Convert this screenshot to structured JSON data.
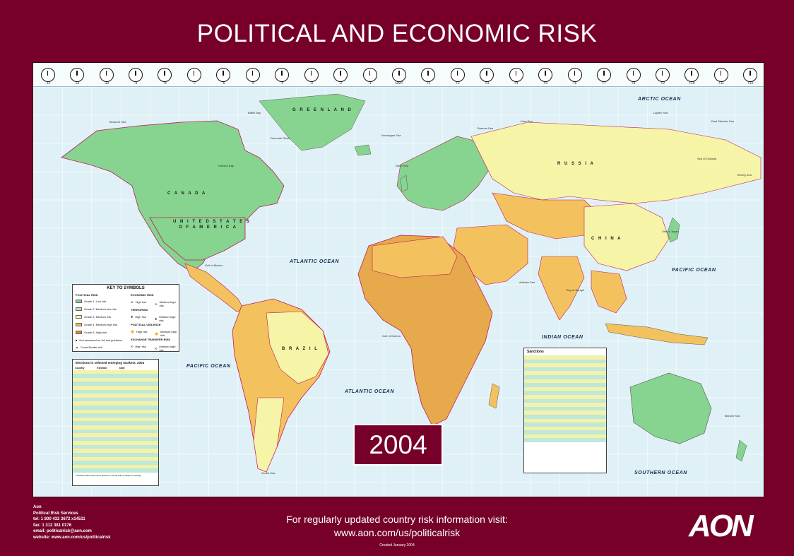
{
  "title": "POLITICAL AND ECONOMIC RISK",
  "year": "2004",
  "timezones": [
    "-12",
    "-11",
    "-10",
    "-9",
    "-8",
    "-7",
    "-6",
    "-5",
    "-4",
    "-3",
    "-2",
    "-1",
    "GMT",
    "+1",
    "+2",
    "+3",
    "+4",
    "+5",
    "+6",
    "+7",
    "+8",
    "+9",
    "+10",
    "+11",
    "+12"
  ],
  "oceans": {
    "arctic": "ARCTIC OCEAN",
    "atlantic_north": "ATLANTIC OCEAN",
    "atlantic_south": "ATLANTIC OCEAN",
    "pacific_east": "PACIFIC OCEAN",
    "pacific_west": "PACIFIC OCEAN",
    "indian": "INDIAN OCEAN",
    "southern": "SOUTHERN OCEAN"
  },
  "countries": {
    "greenland": "G R E E N L A N D",
    "canada": "C A N A D A",
    "usa_line1": "U N I T E D   S T A T E S",
    "usa_line2": "O F   A M E R I C A",
    "russia": "R U S S I A",
    "brazil": "B R A Z I L",
    "china": "C H I N A"
  },
  "seas": {
    "baffin": "Baffin Bay",
    "hudson": "Hudson Bay",
    "beaufort": "Beaufort Sea",
    "gulf_mexico": "Gulf of Mexico",
    "norwegian": "Norwegian Sea",
    "barents": "Barents Sea",
    "kara": "Kara Sea",
    "laptev": "Laptev Sea",
    "east_siberian": "East Siberian Sea",
    "bering": "Bering Sea",
    "okhotsk": "Sea of Okhotsk",
    "japan": "Sea of Japan",
    "arabian": "Arabian Sea",
    "bengal": "Bay of Bengal",
    "guinea": "Gulf of Guinea",
    "scotia": "Scotia Sea",
    "tasman": "Tasman Sea",
    "north_sea": "North Sea",
    "denmark_strait": "Denmark Strait"
  },
  "legend": {
    "title": "KEY TO SYMBOLS",
    "political_risk": "POLITICAL RISK",
    "economic_risk": "ECONOMIC RISK",
    "terrorism": "TERRORISM",
    "political_violence": "POLITICAL VIOLENCE",
    "exchange_transfer": "EXCHANGE TRANSFER RISK",
    "levels": [
      "Grade 1: Low risk",
      "Grade 2: Medium-low risk",
      "Grade 3: Medium risk",
      "Grade 4: Medium-high risk",
      "Grade 5: High risk"
    ],
    "other": [
      "Not assessed for full risk guidance",
      "Cross Border risk"
    ],
    "high_risk": "High risk",
    "medium_high_risk": "Medium-high risk"
  },
  "elections": {
    "title": "Elections in selected emerging markets, 2004",
    "headers": [
      "Country",
      "Election",
      "Date"
    ],
    "footnote": "* Indicates date determined. Elections should still be subject to change."
  },
  "sanctions": {
    "title": "Sanctions"
  },
  "colors": {
    "background": "#76002a",
    "grade1": "#7fd494",
    "grade2": "#b9e6a8",
    "grade3": "#f6f4a7",
    "grade4": "#f0bd4f",
    "grade5": "#e1862f",
    "ocean": "#dff1f6"
  },
  "footer": {
    "company": "Aon",
    "division": "Political Risk Services",
    "tel": "tel: 1 800 432 3672 x14511",
    "fax": "fax: 1 312 381 0176",
    "email": "email: politicalrisk@aon.com",
    "website": "website: www.aon.com/us/politicalrisk",
    "visit_line1": "For regularly updated country risk information visit:",
    "visit_line2": "www.aon.com/us/politicalrisk",
    "created": "Created January 2004",
    "logo": "AON"
  }
}
